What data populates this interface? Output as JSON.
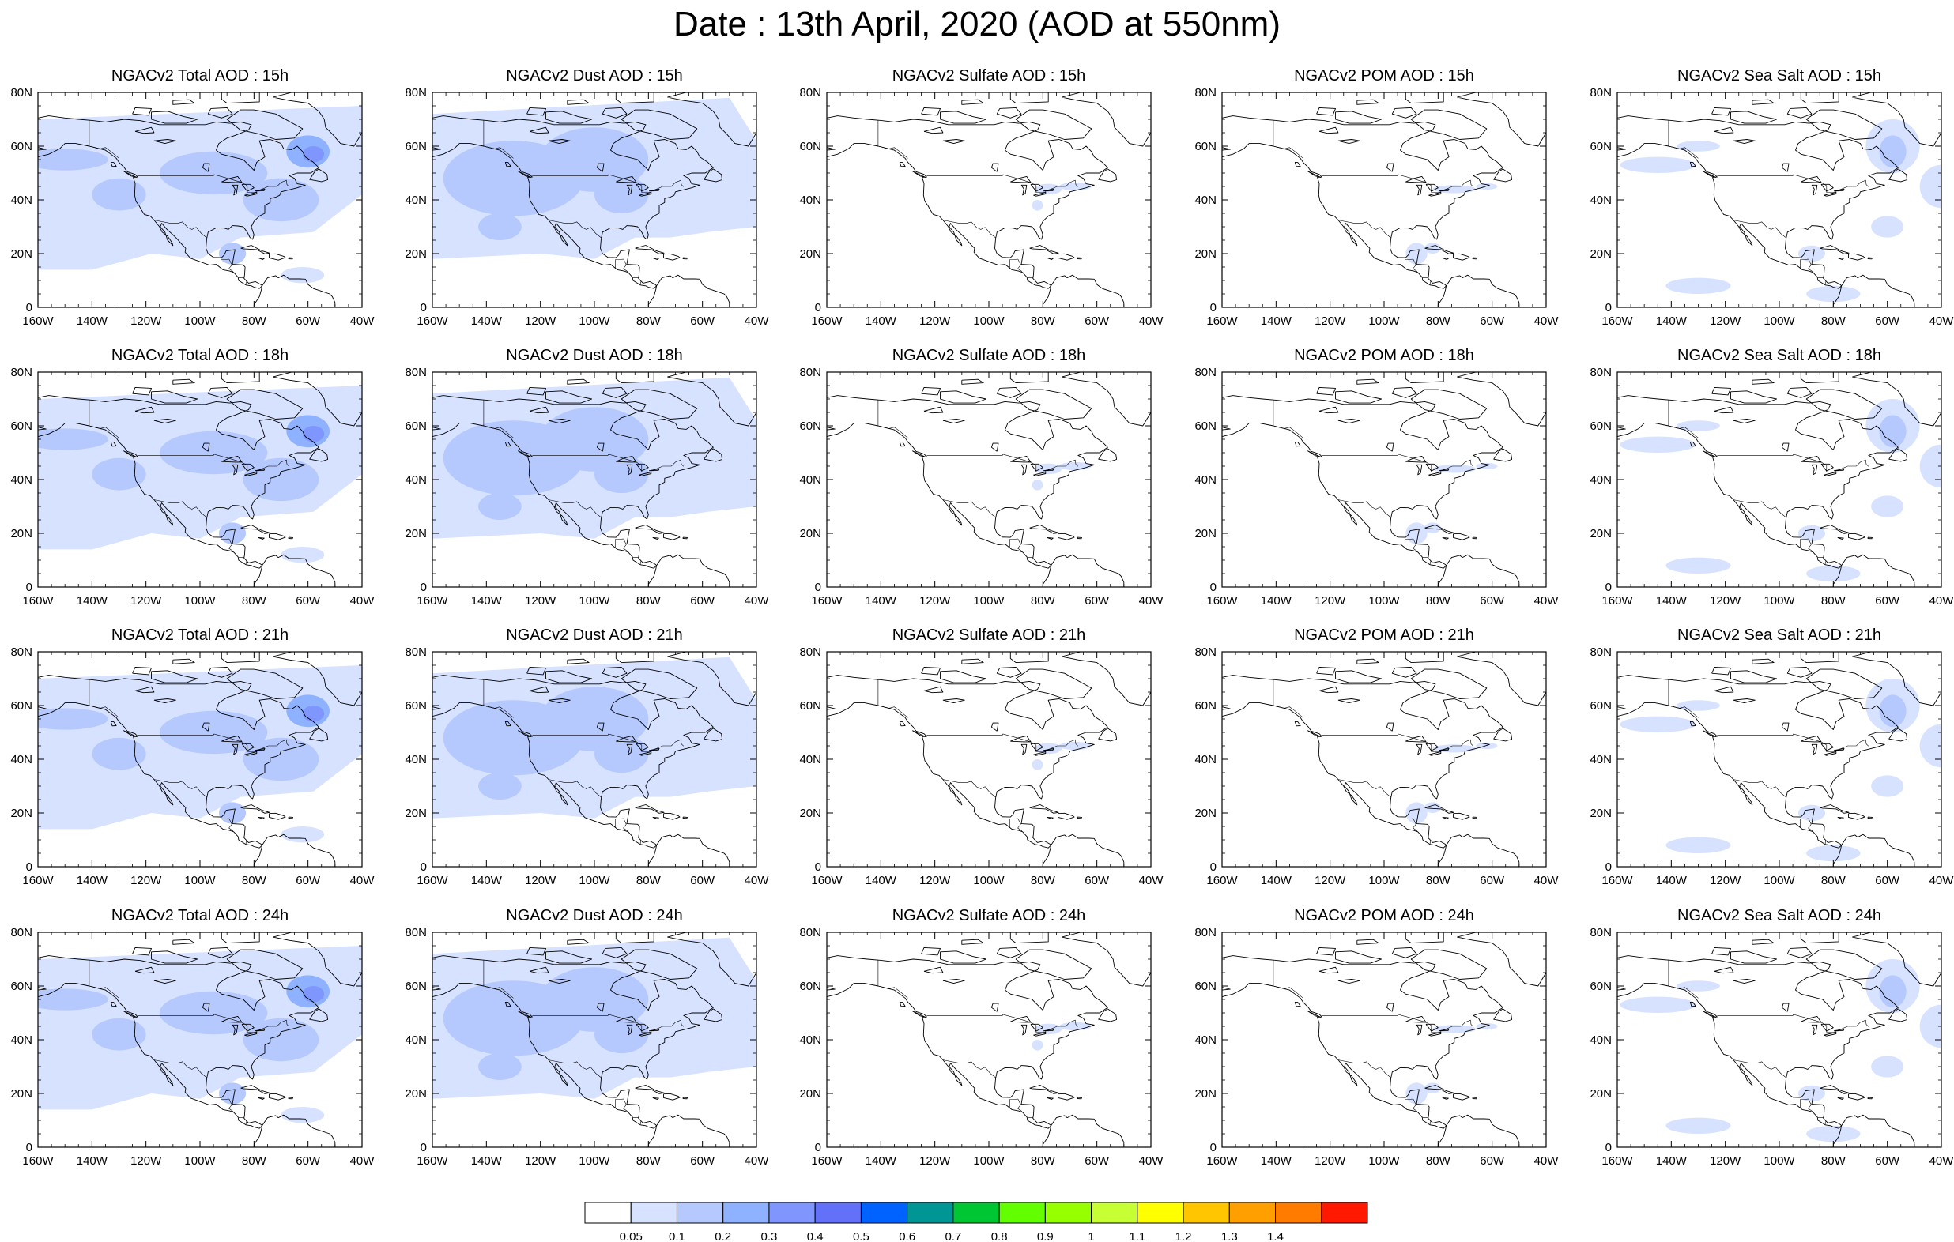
{
  "title": "Date : 13th April, 2020 (AOD at 550nm)",
  "columns": [
    {
      "variable": "Total",
      "label_prefix": "NGACv2 Total AOD : "
    },
    {
      "variable": "Dust",
      "label_prefix": "NGACv2 Dust AOD : "
    },
    {
      "variable": "Sulfate",
      "label_prefix": "NGACv2 Sulfate AOD : "
    },
    {
      "variable": "POM",
      "label_prefix": "NGACv2 POM AOD : "
    },
    {
      "variable": "Sea Salt",
      "label_prefix": "NGACv2 Sea Salt AOD : "
    }
  ],
  "panels": [
    {
      "title": "NGACv2 Total AOD : 15h",
      "variable": "Total",
      "hour": "15h"
    },
    {
      "title": "NGACv2 Dust AOD : 15h",
      "variable": "Dust",
      "hour": "15h"
    },
    {
      "title": "NGACv2 Sulfate AOD : 15h",
      "variable": "Sulfate",
      "hour": "15h"
    },
    {
      "title": "NGACv2 POM AOD : 15h",
      "variable": "POM",
      "hour": "15h"
    },
    {
      "title": "NGACv2 Sea Salt AOD : 15h",
      "variable": "Sea Salt",
      "hour": "15h"
    },
    {
      "title": "NGACv2 Total AOD : 18h",
      "variable": "Total",
      "hour": "18h"
    },
    {
      "title": "NGACv2 Dust AOD : 18h",
      "variable": "Dust",
      "hour": "18h"
    },
    {
      "title": "NGACv2 Sulfate AOD : 18h",
      "variable": "Sulfate",
      "hour": "18h"
    },
    {
      "title": "NGACv2 POM AOD : 18h",
      "variable": "POM",
      "hour": "18h"
    },
    {
      "title": "NGACv2 Sea Salt AOD : 18h",
      "variable": "Sea Salt",
      "hour": "18h"
    },
    {
      "title": "NGACv2 Total AOD : 21h",
      "variable": "Total",
      "hour": "21h"
    },
    {
      "title": "NGACv2 Dust AOD : 21h",
      "variable": "Dust",
      "hour": "21h"
    },
    {
      "title": "NGACv2 Sulfate AOD : 21h",
      "variable": "Sulfate",
      "hour": "21h"
    },
    {
      "title": "NGACv2 POM AOD : 21h",
      "variable": "POM",
      "hour": "21h"
    },
    {
      "title": "NGACv2 Sea Salt AOD : 21h",
      "variable": "Sea Salt",
      "hour": "21h"
    },
    {
      "title": "NGACv2 Total AOD : 24h",
      "variable": "Total",
      "hour": "24h"
    },
    {
      "title": "NGACv2 Dust AOD : 24h",
      "variable": "Dust",
      "hour": "24h"
    },
    {
      "title": "NGACv2 Sulfate AOD : 24h",
      "variable": "Sulfate",
      "hour": "24h"
    },
    {
      "title": "NGACv2 POM AOD : 24h",
      "variable": "POM",
      "hour": "24h"
    },
    {
      "title": "NGACv2 Sea Salt  AOD : 24h",
      "variable": "Sea Salt",
      "hour": "24h"
    }
  ],
  "x_ticks": [
    "160W",
    "140W",
    "120W",
    "100W",
    "80W",
    "60W",
    "40W"
  ],
  "y_ticks": [
    "80N",
    "60N",
    "40N",
    "20N",
    "0"
  ],
  "legend": {
    "colors": [
      "#ffffff",
      "#d6e2ff",
      "#b5c9ff",
      "#8eb2ff",
      "#7f96ff",
      "#6370f8",
      "#0063ff",
      "#009696",
      "#00c633",
      "#63ff00",
      "#96ff00",
      "#c6ff33",
      "#ffff00",
      "#ffc600",
      "#ffa000",
      "#ff7c00",
      "#ff1900"
    ],
    "labels": [
      "0.05",
      "0.1",
      "0.2",
      "0.3",
      "0.4",
      "0.5",
      "0.6",
      "0.7",
      "0.8",
      "0.9",
      "1",
      "1.1",
      "1.2",
      "1.3",
      "1.4"
    ]
  },
  "colors": {
    "level1": "#d6e2ff",
    "level2": "#b5c9ff",
    "level3": "#8eb2ff",
    "level4": "#7f96ff",
    "coast": "#000000"
  }
}
